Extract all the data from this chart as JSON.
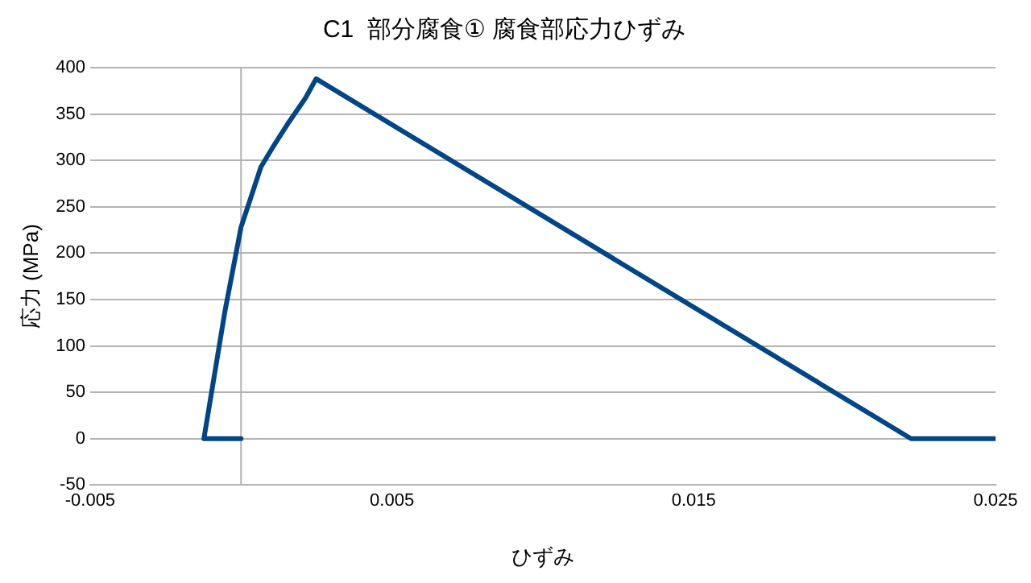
{
  "chart_data": {
    "type": "line",
    "title": "C1  部分腐食① 腐食部応力ひずみ",
    "xlabel": "ひずみ",
    "ylabel": "応力 (MPa)",
    "series": [
      {
        "color": "#004586",
        "x": [
          0,
          -0.00123,
          -0.00053,
          0,
          0.00066,
          0.00103,
          0.00158,
          0.00213,
          0.00249,
          0.0222,
          0.025
        ],
        "values": [
          0,
          0,
          138,
          228,
          293,
          313,
          341,
          367,
          388,
          0,
          0
        ]
      }
    ],
    "xlim": [
      -0.005,
      0.025
    ],
    "xticks": [
      -0.005,
      0.005,
      0.015,
      0.025
    ],
    "ylim": [
      -50,
      400
    ],
    "yticks": [
      -50,
      0,
      50,
      100,
      150,
      200,
      250,
      300,
      350,
      400
    ],
    "grid": "y",
    "legend": false,
    "marker": "none",
    "line_style": "solid"
  }
}
